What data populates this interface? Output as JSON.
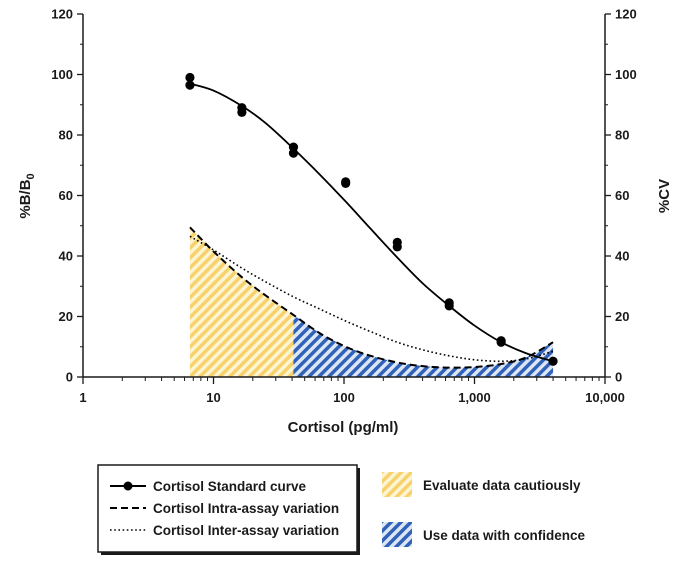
{
  "chart_data": {
    "type": "line",
    "xlabel": "Cortisol (pg/ml)",
    "ylabel_left": "%B/B",
    "ylabel_left_subscript": "0",
    "ylabel_right": "%CV",
    "x_scale": "log",
    "xlim": [
      1,
      10000
    ],
    "x_tick_labels": [
      "1",
      "10",
      "100",
      "1,000",
      "10,000"
    ],
    "x_tick_values": [
      1,
      10,
      100,
      1000,
      10000
    ],
    "ylim_left": [
      0,
      120
    ],
    "ylim_right": [
      0,
      120
    ],
    "y_tick_labels": [
      "0",
      "20",
      "40",
      "60",
      "80",
      "100",
      "120"
    ],
    "y_tick_values": [
      0,
      20,
      40,
      60,
      80,
      100,
      120
    ],
    "grid": false,
    "series": [
      {
        "name": "Cortisol Standard curve",
        "axis": "left",
        "style": "solid-with-markers",
        "color": "#000000",
        "points": [
          {
            "x": 6.6,
            "y": 99
          },
          {
            "x": 6.6,
            "y": 96.5
          },
          {
            "x": 16.5,
            "y": 89
          },
          {
            "x": 16.5,
            "y": 87.5
          },
          {
            "x": 41,
            "y": 76
          },
          {
            "x": 41,
            "y": 74
          },
          {
            "x": 103,
            "y": 64.5
          },
          {
            "x": 103,
            "y": 64
          },
          {
            "x": 256,
            "y": 44.5
          },
          {
            "x": 256,
            "y": 43
          },
          {
            "x": 640,
            "y": 24.5
          },
          {
            "x": 640,
            "y": 23.5
          },
          {
            "x": 1600,
            "y": 12
          },
          {
            "x": 1600,
            "y": 11.5
          },
          {
            "x": 4000,
            "y": 5.2
          }
        ],
        "curve": [
          {
            "x": 6.6,
            "y": 97
          },
          {
            "x": 10,
            "y": 94.7
          },
          {
            "x": 16.5,
            "y": 89.6
          },
          {
            "x": 25,
            "y": 84
          },
          {
            "x": 41,
            "y": 75.5
          },
          {
            "x": 65,
            "y": 67
          },
          {
            "x": 103,
            "y": 58
          },
          {
            "x": 160,
            "y": 49
          },
          {
            "x": 256,
            "y": 39.5
          },
          {
            "x": 400,
            "y": 31
          },
          {
            "x": 640,
            "y": 23.5
          },
          {
            "x": 1000,
            "y": 17
          },
          {
            "x": 1600,
            "y": 11.5
          },
          {
            "x": 2500,
            "y": 7.8
          },
          {
            "x": 4000,
            "y": 5.2
          }
        ]
      },
      {
        "name": "Cortisol Intra-assay variation",
        "axis": "right",
        "style": "dashed",
        "color": "#000000",
        "points": [
          {
            "x": 6.6,
            "y": 49.5
          },
          {
            "x": 10,
            "y": 41.5
          },
          {
            "x": 16.5,
            "y": 33
          },
          {
            "x": 25,
            "y": 27
          },
          {
            "x": 41,
            "y": 20.5
          },
          {
            "x": 65,
            "y": 14.5
          },
          {
            "x": 103,
            "y": 10
          },
          {
            "x": 160,
            "y": 7
          },
          {
            "x": 256,
            "y": 4.8
          },
          {
            "x": 400,
            "y": 3.6
          },
          {
            "x": 640,
            "y": 3.1
          },
          {
            "x": 1000,
            "y": 3.3
          },
          {
            "x": 1600,
            "y": 4.3
          },
          {
            "x": 2500,
            "y": 6.5
          },
          {
            "x": 4000,
            "y": 11.5
          }
        ]
      },
      {
        "name": "Cortisol Inter-assay variation",
        "axis": "right",
        "style": "dotted",
        "color": "#000000",
        "points": [
          {
            "x": 6.6,
            "y": 46.5
          },
          {
            "x": 10,
            "y": 42
          },
          {
            "x": 16.5,
            "y": 36
          },
          {
            "x": 25,
            "y": 31.5
          },
          {
            "x": 41,
            "y": 26.5
          },
          {
            "x": 65,
            "y": 22.5
          },
          {
            "x": 103,
            "y": 18.5
          },
          {
            "x": 160,
            "y": 15
          },
          {
            "x": 256,
            "y": 11.5
          },
          {
            "x": 400,
            "y": 9
          },
          {
            "x": 640,
            "y": 7
          },
          {
            "x": 1000,
            "y": 5.7
          },
          {
            "x": 1600,
            "y": 5.2
          },
          {
            "x": 2500,
            "y": 6
          },
          {
            "x": 4000,
            "y": 8.5
          }
        ]
      }
    ],
    "regions": [
      {
        "name": "Evaluate data cautiously",
        "x_range": [
          6.6,
          41
        ],
        "color": "#f7d26b",
        "pattern": "diagonal-stripes",
        "bounded_by": "Cortisol Intra-assay variation"
      },
      {
        "name": "Use data with confidence",
        "x_range": [
          41,
          4000
        ],
        "color": "#2f62b8",
        "pattern": "diagonal-stripes",
        "bounded_by": "Cortisol Intra-assay variation"
      }
    ],
    "legend_placement": "bottom",
    "legend_lines": [
      {
        "label": "Cortisol Standard curve",
        "style": "solid-with-markers"
      },
      {
        "label": "Cortisol Intra-assay variation",
        "style": "dashed"
      },
      {
        "label": "Cortisol Inter-assay variation",
        "style": "dotted"
      }
    ],
    "legend_regions": [
      {
        "label": "Evaluate data cautiously",
        "color": "#f7d26b"
      },
      {
        "label": "Use data with confidence",
        "color": "#2f62b8"
      }
    ]
  }
}
